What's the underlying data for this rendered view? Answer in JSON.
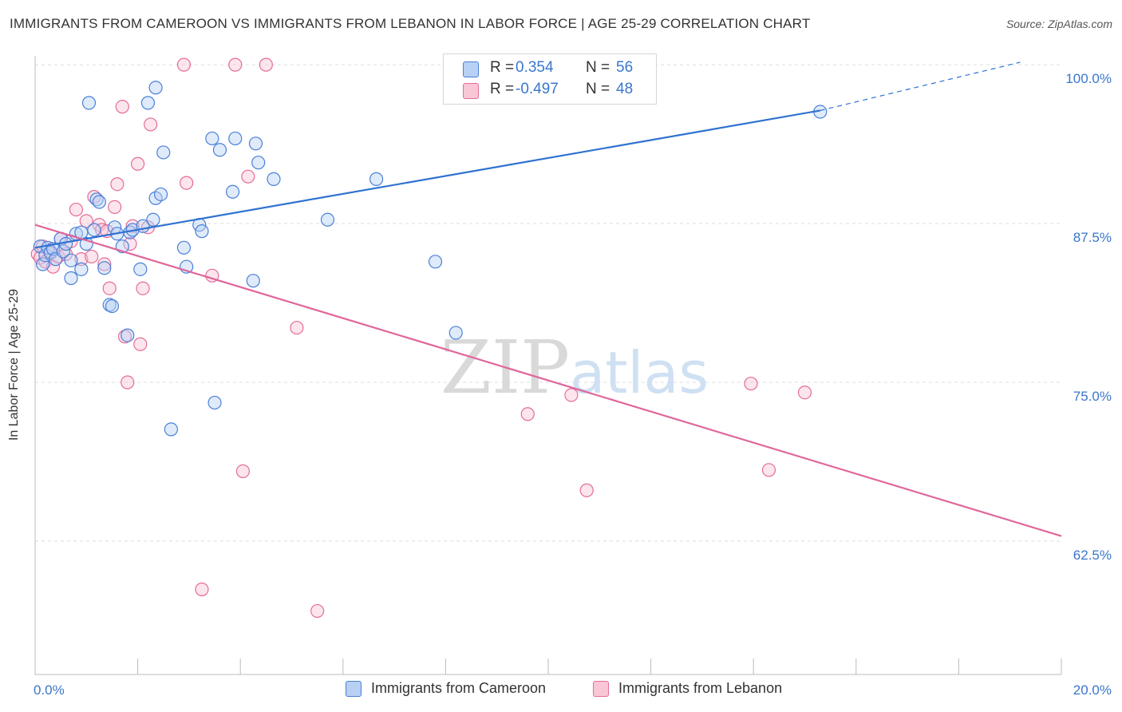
{
  "title": "IMMIGRANTS FROM CAMEROON VS IMMIGRANTS FROM LEBANON IN LABOR FORCE | AGE 25-29 CORRELATION CHART",
  "source": "Source: ZipAtlas.com",
  "watermark": "ZIPatlas",
  "legend": {
    "rows": [
      {
        "r_label": "R =",
        "r_value": "0.354",
        "n_label": "N =",
        "n_value": "56",
        "fill": "#b8d0f4",
        "stroke": "#4a80d8"
      },
      {
        "r_label": "R =",
        "r_value": "-0.497",
        "n_label": "N =",
        "n_value": "48",
        "fill": "#f9c6d6",
        "stroke": "#e46d97"
      }
    ]
  },
  "colors": {
    "blue_line": "#2e72d0",
    "pink_line": "#e0669a",
    "blue_point": "#7aa6e6",
    "pink_point": "#f2a3bd",
    "tick_label": "#3a76cc",
    "grid": "#dddddd"
  },
  "chart_data": {
    "type": "scatter",
    "title": "IMMIGRANTS FROM CAMEROON VS IMMIGRANTS FROM LEBANON IN LABOR FORCE | AGE 25-29 CORRELATION CHART",
    "xlabel": "",
    "ylabel": "In Labor Force | Age 25-29",
    "xlim": [
      0,
      20
    ],
    "ylim": [
      52,
      100.7
    ],
    "x_tick_labels": [
      "0.0%",
      "20.0%"
    ],
    "y_ticks": [
      {
        "value": 100.0,
        "label": "100.0%"
      },
      {
        "value": 87.5,
        "label": "87.5%"
      },
      {
        "value": 75.0,
        "label": "75.0%"
      },
      {
        "value": 62.5,
        "label": "62.5%"
      }
    ],
    "grid": true,
    "legend_position": "top-center",
    "series": [
      {
        "name": "Immigrants from Cameroon",
        "color": "#7aa6e6",
        "points": [
          [
            0.1,
            85.7
          ],
          [
            0.15,
            84.3
          ],
          [
            0.2,
            85.0
          ],
          [
            0.25,
            85.6
          ],
          [
            0.3,
            85.2
          ],
          [
            0.35,
            85.5
          ],
          [
            0.4,
            84.7
          ],
          [
            0.5,
            86.3
          ],
          [
            0.55,
            85.3
          ],
          [
            0.6,
            85.9
          ],
          [
            0.7,
            84.6
          ],
          [
            0.7,
            83.2
          ],
          [
            0.8,
            86.7
          ],
          [
            0.9,
            86.8
          ],
          [
            0.9,
            83.9
          ],
          [
            1.0,
            85.9
          ],
          [
            1.15,
            87.0
          ],
          [
            1.2,
            89.4
          ],
          [
            1.25,
            89.2
          ],
          [
            1.35,
            84.0
          ],
          [
            1.45,
            81.1
          ],
          [
            1.5,
            81.0
          ],
          [
            1.55,
            87.2
          ],
          [
            1.6,
            86.7
          ],
          [
            1.7,
            85.7
          ],
          [
            1.8,
            78.7
          ],
          [
            1.85,
            86.8
          ],
          [
            1.9,
            87.0
          ],
          [
            2.05,
            83.9
          ],
          [
            2.1,
            87.3
          ],
          [
            2.2,
            97.0
          ],
          [
            2.3,
            87.8
          ],
          [
            2.35,
            89.5
          ],
          [
            2.45,
            89.8
          ],
          [
            2.5,
            93.1
          ],
          [
            2.65,
            71.3
          ],
          [
            2.9,
            85.6
          ],
          [
            2.95,
            84.1
          ],
          [
            3.2,
            87.4
          ],
          [
            3.25,
            86.9
          ],
          [
            3.45,
            94.2
          ],
          [
            3.5,
            73.4
          ],
          [
            3.6,
            93.3
          ],
          [
            3.85,
            90.0
          ],
          [
            3.9,
            94.2
          ],
          [
            4.25,
            83.0
          ],
          [
            4.3,
            93.8
          ],
          [
            4.35,
            92.3
          ],
          [
            4.65,
            91.0
          ],
          [
            5.7,
            87.8
          ],
          [
            6.65,
            91.0
          ],
          [
            7.8,
            84.5
          ],
          [
            8.2,
            78.9
          ],
          [
            1.05,
            97.0
          ],
          [
            2.35,
            98.2
          ],
          [
            15.3,
            96.3
          ]
        ]
      },
      {
        "name": "Immigrants from Lebanon",
        "color": "#f2a3bd",
        "points": [
          [
            0.05,
            85.1
          ],
          [
            0.1,
            84.8
          ],
          [
            0.15,
            85.7
          ],
          [
            0.2,
            84.5
          ],
          [
            0.3,
            85.3
          ],
          [
            0.35,
            84.1
          ],
          [
            0.45,
            84.9
          ],
          [
            0.5,
            86.3
          ],
          [
            0.6,
            85.1
          ],
          [
            0.7,
            86.1
          ],
          [
            0.8,
            88.6
          ],
          [
            0.9,
            84.7
          ],
          [
            1.0,
            87.7
          ],
          [
            1.1,
            84.9
          ],
          [
            1.15,
            89.6
          ],
          [
            1.25,
            87.4
          ],
          [
            1.3,
            87.0
          ],
          [
            1.35,
            84.3
          ],
          [
            1.45,
            82.4
          ],
          [
            1.55,
            88.8
          ],
          [
            1.6,
            90.6
          ],
          [
            1.7,
            96.7
          ],
          [
            1.75,
            78.6
          ],
          [
            1.8,
            75.0
          ],
          [
            1.85,
            85.9
          ],
          [
            1.9,
            87.3
          ],
          [
            2.0,
            92.2
          ],
          [
            2.05,
            78.0
          ],
          [
            2.1,
            82.4
          ],
          [
            2.2,
            87.2
          ],
          [
            2.25,
            95.3
          ],
          [
            2.9,
            100.0
          ],
          [
            2.95,
            90.7
          ],
          [
            3.25,
            58.7
          ],
          [
            3.45,
            83.4
          ],
          [
            3.9,
            100.0
          ],
          [
            4.05,
            68.0
          ],
          [
            4.15,
            91.2
          ],
          [
            4.5,
            100.0
          ],
          [
            5.1,
            79.3
          ],
          [
            5.5,
            57.0
          ],
          [
            9.6,
            72.5
          ],
          [
            10.45,
            74.0
          ],
          [
            10.75,
            66.5
          ],
          [
            13.95,
            74.9
          ],
          [
            14.3,
            68.1
          ],
          [
            15.0,
            74.2
          ],
          [
            1.4,
            86.9
          ]
        ]
      }
    ],
    "trend_lines": [
      {
        "series": "Immigrants from Cameroon",
        "x_start": 0.0,
        "y_start": 85.6,
        "x_solid_end": 15.3,
        "y_solid_end": 96.4,
        "x_dash_end": 19.2,
        "y_dash_end": 100.2,
        "color": "#2e72d0"
      },
      {
        "series": "Immigrants from Lebanon",
        "x_start": 0.0,
        "y_start": 87.4,
        "x_end": 20.0,
        "y_end": 62.9,
        "color": "#e0669a"
      }
    ]
  }
}
